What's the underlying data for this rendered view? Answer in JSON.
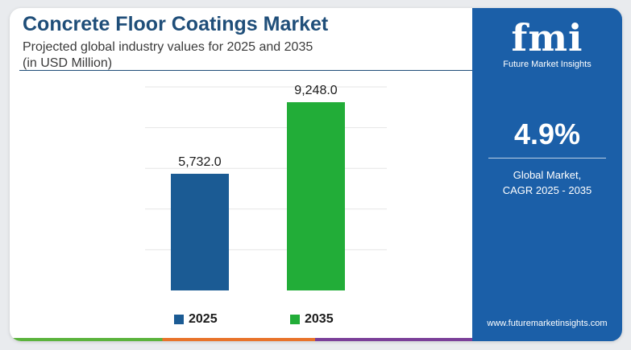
{
  "header": {
    "title": "Concrete Floor Coatings Market",
    "subtitle_line1": "Projected global industry values for 2025 and 2035",
    "subtitle_line2": "(in USD Million)"
  },
  "panel": {
    "logo_text": "fmi",
    "logo_subtext": "Future Market Insights",
    "cagr_value": "4.9%",
    "cagr_label_line1": "Global Market,",
    "cagr_label_line2": "CAGR 2025 - 2035",
    "website": "www.futuremarketinsights.com"
  },
  "colors": {
    "title": "#1f4e79",
    "bar_2025": "#1b5b94",
    "bar_2035": "#22ad38",
    "panel": "#1b5fa8"
  },
  "chart_data": {
    "type": "bar",
    "title": "Concrete Floor Coatings Market",
    "categories": [
      "2025",
      "2035"
    ],
    "values": [
      5732.0,
      9248.0
    ],
    "value_labels": [
      "5,732.0",
      "9,248.0"
    ],
    "colors": [
      "#1b5b94",
      "#22ad38"
    ],
    "legend": [
      "2025",
      "2035"
    ],
    "legend_position": "bottom",
    "ylim": [
      0,
      10000
    ],
    "grid": true,
    "xlabel": "",
    "ylabel": ""
  }
}
